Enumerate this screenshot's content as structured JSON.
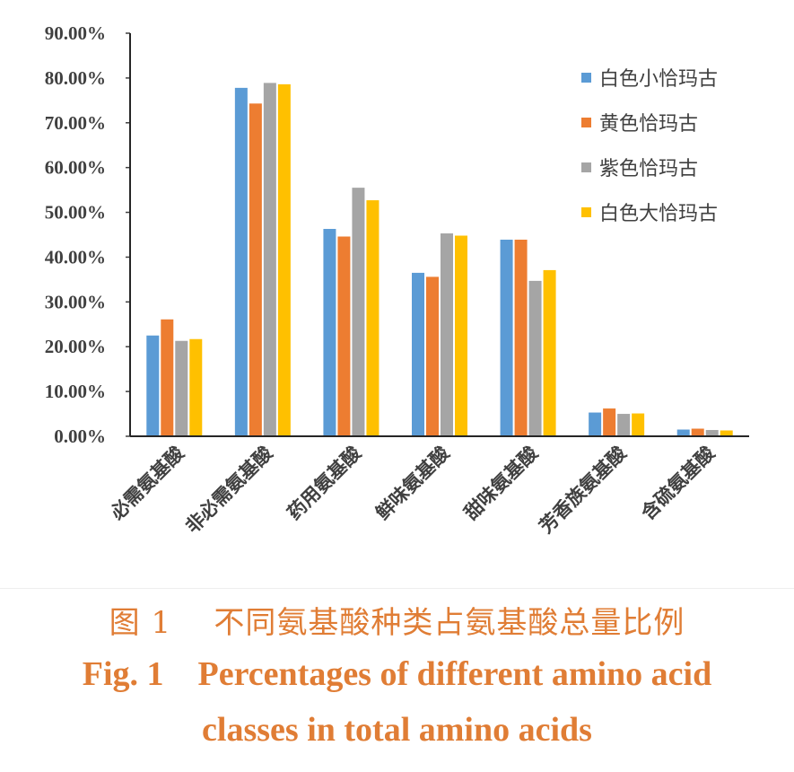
{
  "chart_data": {
    "type": "bar",
    "categories": [
      "必需氨基酸",
      "非必需氨基酸",
      "药用氨基酸",
      "鲜味氨基酸",
      "甜味氨基酸",
      "芳香族氨基酸",
      "含硫氨基酸"
    ],
    "series": [
      {
        "name": "白色小恰玛古",
        "color": "#5b9bd5",
        "values": [
          22.5,
          77.8,
          46.3,
          36.5,
          43.9,
          5.3,
          1.5
        ]
      },
      {
        "name": "黄色恰玛古",
        "color": "#ed7d31",
        "values": [
          26.1,
          74.3,
          44.6,
          35.6,
          43.9,
          6.2,
          1.7
        ]
      },
      {
        "name": "紫色恰玛古",
        "color": "#a5a5a5",
        "values": [
          21.3,
          78.9,
          55.5,
          45.3,
          34.7,
          5.0,
          1.4
        ]
      },
      {
        "name": "白色大恰玛古",
        "color": "#ffc000",
        "values": [
          21.7,
          78.6,
          52.7,
          44.8,
          37.1,
          5.1,
          1.3
        ]
      }
    ],
    "ylim": [
      0,
      90
    ],
    "yticks": [
      "0.00%",
      "10.00%",
      "20.00%",
      "30.00%",
      "40.00%",
      "50.00%",
      "60.00%",
      "70.00%",
      "80.00%",
      "90.00%"
    ],
    "legend_position": "top-right",
    "grid": false
  },
  "caption": {
    "cn": "图 1    不同氨基酸种类占氨基酸总量比例",
    "en_line1": "Fig. 1    Percentages of different amino acid",
    "en_line2": "classes in total amino acids"
  }
}
